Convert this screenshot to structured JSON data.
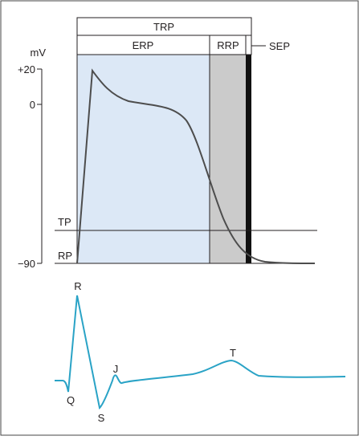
{
  "labels": {
    "trp": "TRP",
    "erp": "ERP",
    "rrp": "RRP",
    "sep": "SEP",
    "unit": "mV",
    "tick_plus20": "+20",
    "tick_zero": "0",
    "tick_minus90": "−90",
    "tp": "TP",
    "rp": "RP",
    "ecg_r": "R",
    "ecg_q": "Q",
    "ecg_s": "S",
    "ecg_j": "J",
    "ecg_t": "T"
  },
  "colors": {
    "erp_fill": "#dce8f6",
    "rrp_fill": "#cbcbcb",
    "sep_fill": "#111111",
    "action_potential": "#4d4d4d",
    "ecg": "#2aa3c6",
    "lines": "#231f20"
  }
}
